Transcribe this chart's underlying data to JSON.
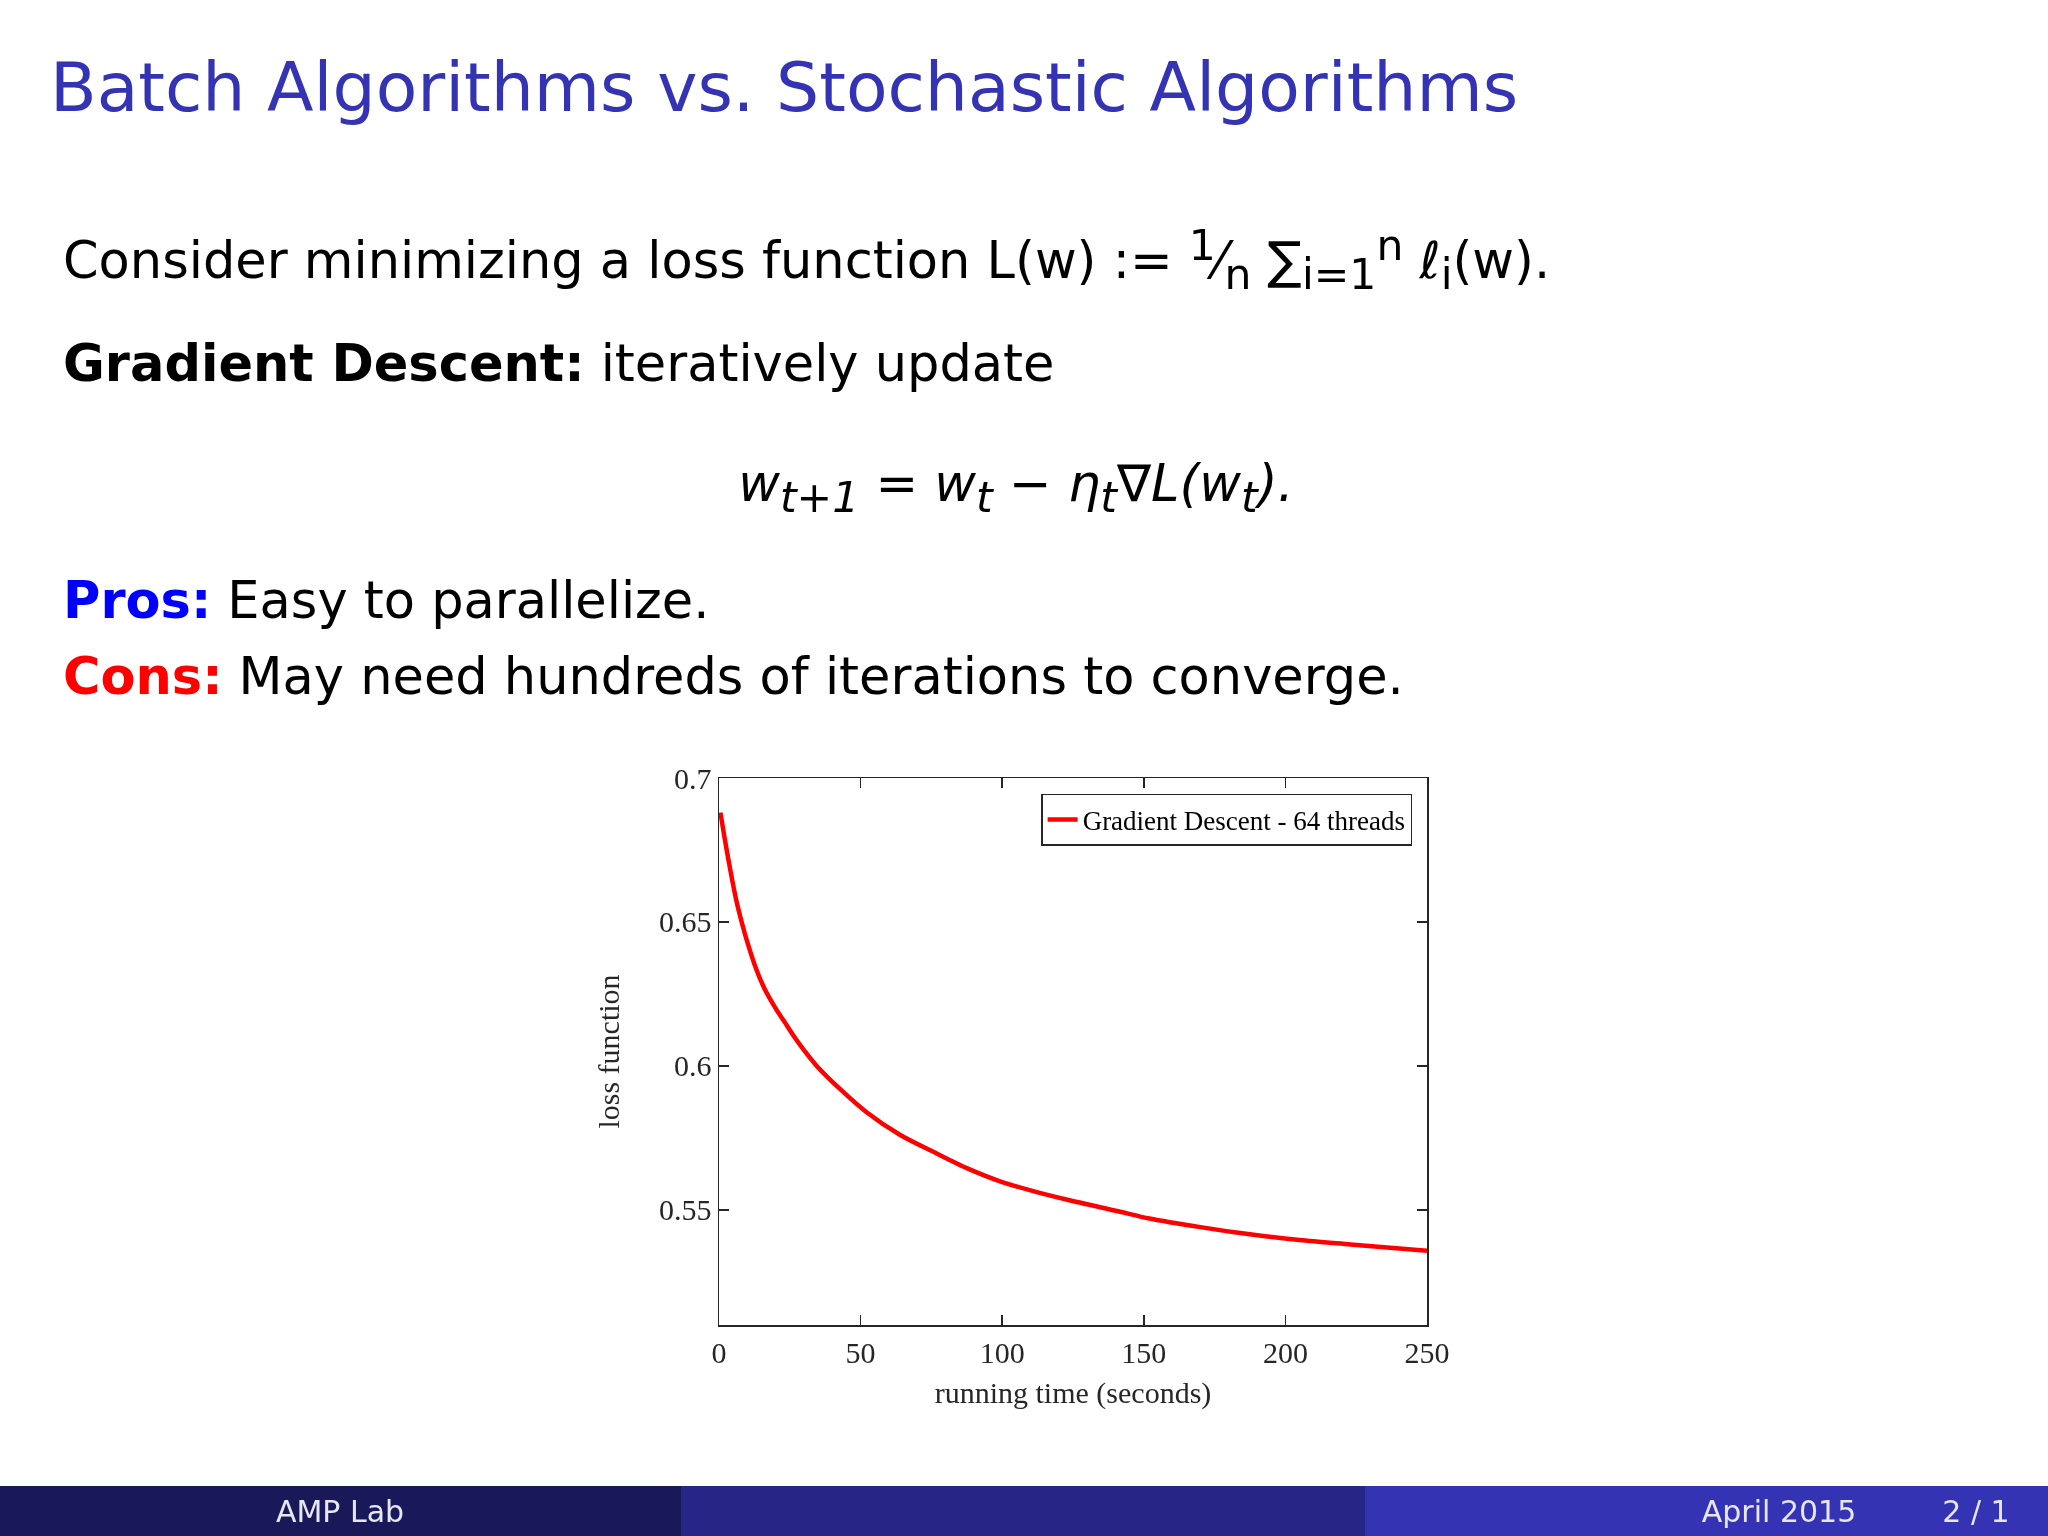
{
  "chart_data": {
    "type": "line",
    "title": "Batch Algorithms vs. Stochastic Algorithms",
    "annotations": [
      "Consider minimizing a loss function L(w) := $^{1}$⁄$_{n}$ ∑$_{i=1}$$^{n}$ ℓ$_{i}$(w).",
      "Gradient Descent:",
      "iteratively update",
      "w$_{t+1}$ = w$_{t}$ − η$_{t}$∇L(w$_{t}$).",
      "Pros:",
      "Easy to parallelize.",
      "Cons:",
      "May need hundreds of iterations to converge.",
      "AMP Lab",
      "April 2015",
      "2 / 1"
    ],
    "xlabel": "running time (seconds)",
    "ylabel": "loss function",
    "x": [
      0.5,
      2,
      4,
      6,
      8,
      10,
      13,
      16,
      20,
      23,
      27,
      30,
      34.5,
      42.7,
      52,
      64,
      76,
      87.5,
      99,
      111,
      123,
      141,
      152,
      170,
      187.5,
      205,
      223,
      250
    ],
    "series": [
      {
        "name": "Gradient Descent - 64 threads",
        "color": "#ff0000",
        "values": [
          0.688,
          0.679,
          0.668,
          0.658,
          0.65,
          0.643,
          0.634,
          0.627,
          0.62,
          0.6155,
          0.6095,
          0.6055,
          0.6,
          0.592,
          0.584,
          0.576,
          0.57,
          0.5645,
          0.56,
          0.5565,
          0.5535,
          0.5495,
          0.547,
          0.544,
          0.5415,
          0.5395,
          0.538,
          0.5358
        ]
      }
    ],
    "xlim": [
      0,
      250
    ],
    "xticks": [
      0,
      50,
      100,
      150,
      200,
      250
    ],
    "ylim": [
      0.51,
      0.7
    ],
    "yticks": [
      0.55,
      0.6,
      0.65,
      0.7
    ],
    "legend": "top right",
    "grid": false,
    "marker": "none",
    "line_style": "solid"
  }
}
